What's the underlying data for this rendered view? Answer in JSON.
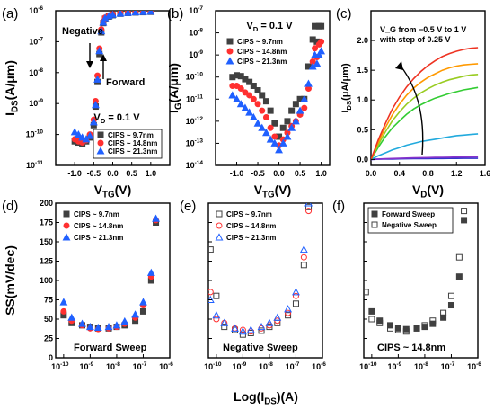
{
  "chart_data": [
    {
      "panel": "(a)",
      "type": "scatter",
      "xlabel": "V_TG(V)",
      "ylabel": "I_DS(A/μm)",
      "xlim": [
        -1.5,
        1.5
      ],
      "ylim_log": [
        -11,
        -6
      ],
      "yscale": "log",
      "xticks": [
        "-1.0",
        "-0.5",
        "0.0",
        "0.5",
        "1.0"
      ],
      "yticks": [
        "10",
        "10",
        "10",
        "10",
        "10",
        "10"
      ],
      "ytick_exponents": [
        "-11",
        "-10",
        "-9",
        "-8",
        "-7",
        "-6"
      ],
      "annotations": [
        "Negative",
        "Forward",
        "V_D = 0.1 V"
      ],
      "series": [
        {
          "name": "CIPS ~ 9.7nm",
          "marker": "square",
          "color": "#404040",
          "x": [
            -1.0,
            -0.9,
            -0.8,
            -0.7,
            -0.6,
            -0.5,
            -0.45,
            -0.4,
            -0.35,
            -0.3,
            -0.25,
            -0.2,
            -0.1,
            0.0,
            0.2,
            0.4,
            0.6,
            0.8,
            1.0
          ],
          "y": [
            6e-11,
            5.5e-11,
            5e-11,
            6e-11,
            8e-11,
            2e-10,
            8e-10,
            5e-09,
            4e-08,
            2e-07,
            4e-07,
            5.5e-07,
            6.5e-07,
            7.2e-07,
            8e-07,
            8.5e-07,
            8.8e-07,
            9e-07,
            9.2e-07
          ]
        },
        {
          "name": "CIPS ~ 14.8nm",
          "marker": "circle",
          "color": "#ff3030",
          "x": [
            -1.0,
            -0.9,
            -0.8,
            -0.7,
            -0.6,
            -0.5,
            -0.45,
            -0.4,
            -0.35,
            -0.3,
            -0.25,
            -0.2,
            -0.1,
            0.0,
            0.2,
            0.4,
            0.6,
            0.8,
            1.0
          ],
          "y": [
            7e-11,
            6e-11,
            5.5e-11,
            6.5e-11,
            1e-10,
            3e-10,
            1.2e-09,
            8e-09,
            6e-08,
            2.5e-07,
            4.5e-07,
            6e-07,
            7e-07,
            7.8e-07,
            8.4e-07,
            8.8e-07,
            9.1e-07,
            9.3e-07,
            9.5e-07
          ]
        },
        {
          "name": "CIPS ~ 21.3nm",
          "marker": "triangle",
          "color": "#2060ff",
          "x": [
            -1.0,
            -0.9,
            -0.8,
            -0.7,
            -0.6,
            -0.5,
            -0.45,
            -0.4,
            -0.35,
            -0.3,
            -0.25,
            -0.2,
            -0.1,
            0.0,
            0.2,
            0.4,
            0.6,
            0.8,
            1.0
          ],
          "y": [
            1.2e-10,
            1e-10,
            8e-11,
            7e-11,
            9e-11,
            2.5e-10,
            9e-10,
            6e-09,
            5e-08,
            2.2e-07,
            4.2e-07,
            5.8e-07,
            6.8e-07,
            7.5e-07,
            8.2e-07,
            8.6e-07,
            9e-07,
            9.2e-07,
            9.4e-07
          ]
        }
      ]
    },
    {
      "panel": "(b)",
      "type": "scatter",
      "xlabel": "V_TG(V)",
      "ylabel": "I_G(A/μm)",
      "xlim": [
        -1.5,
        1.2
      ],
      "ylim_log": [
        -14,
        -7
      ],
      "yscale": "log",
      "xticks": [
        "-1.0",
        "-0.5",
        "0.0",
        "0.5",
        "1.0"
      ],
      "yticks": [
        "10",
        "10",
        "10",
        "10",
        "10",
        "10",
        "10",
        "10"
      ],
      "ytick_exponents": [
        "-14",
        "-13",
        "-12",
        "-11",
        "-10",
        "-9",
        "-8",
        "-7"
      ],
      "annotations": [
        "V_D = 0.1 V"
      ],
      "series": [
        {
          "name": "CIPS ~ 9.7nm",
          "marker": "square",
          "color": "#404040",
          "x": [
            -1.1,
            -1.0,
            -0.9,
            -0.8,
            -0.7,
            -0.6,
            -0.5,
            -0.4,
            -0.3,
            -0.2,
            -0.1,
            0.0,
            0.1,
            0.2,
            0.3,
            0.4,
            0.5,
            0.6,
            0.7,
            0.8,
            0.85,
            0.9,
            0.95,
            1.0
          ],
          "y": [
            1e-10,
            1.2e-10,
            1.1e-10,
            8e-11,
            6e-11,
            4e-11,
            2.5e-11,
            1.5e-11,
            8e-12,
            3e-12,
            8e-13,
            2e-13,
            5e-13,
            1e-12,
            3e-12,
            6e-12,
            1e-11,
            1e-11,
            3e-10,
            5e-09,
            2e-08,
            4e-09,
            2e-08,
            2e-08
          ]
        },
        {
          "name": "CIPS ~ 14.8nm",
          "marker": "circle",
          "color": "#ff3030",
          "x": [
            -1.1,
            -1.0,
            -0.9,
            -0.8,
            -0.7,
            -0.6,
            -0.5,
            -0.4,
            -0.3,
            -0.2,
            -0.1,
            0.0,
            0.1,
            0.2,
            0.3,
            0.4,
            0.5,
            0.6,
            0.7,
            0.8,
            0.85,
            0.9,
            0.95,
            1.0
          ],
          "y": [
            4e-11,
            4e-11,
            3e-11,
            2e-11,
            1.5e-11,
            1e-11,
            6e-12,
            3e-12,
            1.5e-12,
            5e-13,
            2e-13,
            8e-14,
            1.5e-13,
            3e-13,
            6e-13,
            1e-12,
            2e-12,
            4e-12,
            3e-11,
            5e-10,
            2e-09,
            8e-10,
            3e-09,
            4e-09
          ]
        },
        {
          "name": "CIPS ~ 21.3nm",
          "marker": "triangle",
          "color": "#2060ff",
          "x": [
            -1.1,
            -1.0,
            -0.9,
            -0.8,
            -0.7,
            -0.6,
            -0.5,
            -0.4,
            -0.3,
            -0.2,
            -0.1,
            0.0,
            0.1,
            0.2,
            0.3,
            0.4,
            0.5,
            0.6,
            0.7,
            0.8,
            0.85,
            0.9,
            0.95,
            1.0
          ],
          "y": [
            1.5e-11,
            1e-11,
            6e-12,
            4e-12,
            2.5e-12,
            1.5e-12,
            8e-13,
            5e-13,
            3e-13,
            1.5e-13,
            1e-13,
            5e-14,
            1e-13,
            2e-13,
            5e-13,
            1e-12,
            3e-12,
            1e-11,
            5e-11,
            3e-10,
            1e-09,
            4e-10,
            1e-09,
            1.5e-09
          ]
        }
      ]
    },
    {
      "panel": "(c)",
      "type": "line",
      "xlabel": "V_D(V)",
      "ylabel": "I_DS(μA/μm)",
      "xlim": [
        0.0,
        1.6
      ],
      "ylim": [
        -0.1,
        2.5
      ],
      "xticks": [
        "0.0",
        "0.4",
        "0.8",
        "1.2",
        "1.6"
      ],
      "yticks": [
        "0.0",
        "0.5",
        "1.0",
        "1.5",
        "2.0"
      ],
      "annotations": [
        "V_G from −0.5 V to 1 V",
        "with step of 0.25 V"
      ],
      "x": [
        0.0,
        0.05,
        0.1,
        0.2,
        0.3,
        0.4,
        0.5,
        0.6,
        0.7,
        0.8,
        0.9,
        1.0,
        1.1,
        1.2,
        1.3,
        1.4,
        1.5
      ],
      "series": [
        {
          "color": "#3333cc",
          "values": [
            0,
            0.002,
            0.004,
            0.006,
            0.008,
            0.01,
            0.012,
            0.013,
            0.014,
            0.015,
            0.016,
            0.017,
            0.018,
            0.018,
            0.019,
            0.019,
            0.02
          ]
        },
        {
          "color": "#8833cc",
          "values": [
            0,
            0.004,
            0.008,
            0.012,
            0.016,
            0.02,
            0.024,
            0.027,
            0.03,
            0.032,
            0.034,
            0.036,
            0.038,
            0.04,
            0.041,
            0.042,
            0.043
          ]
        },
        {
          "color": "#22aadd",
          "values": [
            0,
            0.03,
            0.06,
            0.11,
            0.16,
            0.2,
            0.24,
            0.27,
            0.3,
            0.32,
            0.34,
            0.36,
            0.38,
            0.4,
            0.41,
            0.42,
            0.43
          ]
        },
        {
          "color": "#33cc33",
          "values": [
            0,
            0.1,
            0.2,
            0.38,
            0.53,
            0.65,
            0.76,
            0.85,
            0.92,
            0.98,
            1.03,
            1.07,
            1.11,
            1.14,
            1.17,
            1.19,
            1.21
          ]
        },
        {
          "color": "#99cc22",
          "values": [
            0,
            0.12,
            0.24,
            0.46,
            0.65,
            0.8,
            0.93,
            1.03,
            1.12,
            1.19,
            1.25,
            1.3,
            1.34,
            1.37,
            1.4,
            1.42,
            1.43
          ]
        },
        {
          "color": "#ff9900",
          "values": [
            0,
            0.14,
            0.28,
            0.53,
            0.75,
            0.93,
            1.08,
            1.2,
            1.3,
            1.38,
            1.44,
            1.5,
            1.54,
            1.57,
            1.59,
            1.6,
            1.61
          ]
        },
        {
          "color": "#ee3322",
          "values": [
            0,
            0.16,
            0.32,
            0.6,
            0.85,
            1.05,
            1.22,
            1.36,
            1.48,
            1.58,
            1.66,
            1.73,
            1.78,
            1.82,
            1.85,
            1.87,
            1.88
          ]
        }
      ]
    },
    {
      "panel": "(d)",
      "type": "scatter",
      "xlabel": "",
      "ylabel": "SS(mV/dec)",
      "xscale": "log",
      "xlim_log": [
        -10.3,
        -6
      ],
      "ylim": [
        0,
        200
      ],
      "xticks": [
        "10",
        "10",
        "10",
        "10",
        "10"
      ],
      "xtick_exponents": [
        "-10",
        "-9",
        "-8",
        "-7",
        "-6"
      ],
      "yticks": [
        "0",
        "25",
        "50",
        "75",
        "100",
        "125",
        "150",
        "175",
        "200"
      ],
      "annotations": [
        "Forward Sweep"
      ],
      "series": [
        {
          "name": "CIPS ~ 9.7nm",
          "marker": "square",
          "color": "#404040",
          "x": [
            1e-10,
            2e-10,
            5e-10,
            1e-09,
            2e-09,
            5e-09,
            1e-08,
            2e-08,
            5e-08,
            1e-07,
            2e-07,
            3e-07
          ],
          "y": [
            55,
            45,
            42,
            40,
            38,
            38,
            40,
            42,
            48,
            60,
            100,
            175
          ]
        },
        {
          "name": "CIPS ~ 14.8nm",
          "marker": "circle",
          "color": "#ff3030",
          "x": [
            1e-10,
            2e-10,
            5e-10,
            1e-09,
            2e-09,
            5e-09,
            1e-08,
            2e-08,
            5e-08,
            1e-07,
            2e-07,
            3e-07
          ],
          "y": [
            60,
            48,
            42,
            38,
            37,
            38,
            40,
            44,
            52,
            68,
            105,
            178
          ]
        },
        {
          "name": "CIPS ~ 21.3nm",
          "marker": "triangle",
          "color": "#2060ff",
          "x": [
            1e-10,
            2e-10,
            5e-10,
            1e-09,
            2e-09,
            5e-09,
            1e-08,
            2e-08,
            5e-08,
            1e-07,
            2e-07,
            3e-07
          ],
          "y": [
            72,
            52,
            44,
            40,
            39,
            40,
            42,
            47,
            56,
            72,
            110,
            180
          ]
        }
      ]
    },
    {
      "panel": "(e)",
      "type": "scatter",
      "xlabel": "Log(I_DS)(A)",
      "xscale": "log",
      "xlim_log": [
        -10.3,
        -6
      ],
      "ylim": [
        0,
        200
      ],
      "xticks": [
        "10",
        "10",
        "10",
        "10",
        "10"
      ],
      "xtick_exponents": [
        "-10",
        "-9",
        "-8",
        "-7",
        "-6"
      ],
      "annotations": [
        "Negative  Sweep"
      ],
      "series": [
        {
          "name": "CIPS ~ 9.7nm",
          "marker": "square-open",
          "color": "#404040",
          "x": [
            6e-11,
            1e-10,
            2e-10,
            5e-10,
            1e-09,
            2e-09,
            5e-09,
            1e-08,
            2e-08,
            5e-08,
            1e-07,
            2e-07,
            3e-07
          ],
          "y": [
            140,
            80,
            40,
            36,
            30,
            32,
            35,
            40,
            45,
            55,
            70,
            120,
            195
          ]
        },
        {
          "name": "CIPS ~ 14.8nm",
          "marker": "circle-open",
          "color": "#ff3030",
          "x": [
            6e-11,
            1e-10,
            2e-10,
            5e-10,
            1e-09,
            2e-09,
            5e-09,
            1e-08,
            2e-08,
            5e-08,
            1e-07,
            2e-07,
            3e-07
          ],
          "y": [
            85,
            50,
            45,
            38,
            36,
            34,
            38,
            42,
            48,
            58,
            80,
            130,
            190
          ]
        },
        {
          "name": "CIPS ~ 21.3nm",
          "marker": "triangle-open",
          "color": "#2060ff",
          "x": [
            6e-11,
            1e-10,
            2e-10,
            5e-10,
            1e-09,
            2e-09,
            5e-09,
            1e-08,
            2e-08,
            5e-08,
            1e-07,
            2e-07,
            3e-07
          ],
          "y": [
            75,
            55,
            45,
            38,
            34,
            36,
            40,
            45,
            52,
            63,
            85,
            140,
            200
          ]
        }
      ]
    },
    {
      "panel": "(f)",
      "type": "scatter",
      "xscale": "log",
      "xlim_log": [
        -10.3,
        -6
      ],
      "ylim": [
        0,
        200
      ],
      "xticks": [
        "10",
        "10",
        "10",
        "10",
        "10"
      ],
      "xtick_exponents": [
        "-10",
        "-9",
        "-8",
        "-7",
        "-6"
      ],
      "annotations": [
        "CIPS ~ 14.8nm"
      ],
      "series": [
        {
          "name": "Forward Sweep",
          "marker": "square",
          "color": "#404040",
          "x": [
            1e-10,
            2e-10,
            5e-10,
            1e-09,
            2e-09,
            5e-09,
            1e-08,
            2e-08,
            5e-08,
            1e-07,
            2e-07,
            3e-07
          ],
          "y": [
            60,
            48,
            42,
            38,
            37,
            38,
            40,
            44,
            52,
            68,
            105,
            178
          ]
        },
        {
          "name": "Negative Sweep",
          "marker": "square-open",
          "color": "#404040",
          "x": [
            6e-11,
            1e-10,
            2e-10,
            5e-10,
            1e-09,
            2e-09,
            5e-09,
            1e-08,
            2e-08,
            5e-08,
            1e-07,
            2e-07,
            3e-07
          ],
          "y": [
            85,
            50,
            45,
            38,
            36,
            34,
            38,
            42,
            48,
            58,
            80,
            130,
            190
          ]
        }
      ]
    }
  ],
  "panel_labels": [
    "(a)",
    "(b)",
    "(c)",
    "(d)",
    "(e)",
    "(f)"
  ],
  "shared": {
    "bottom_xlabel": "Log(I_DS)(A)"
  }
}
